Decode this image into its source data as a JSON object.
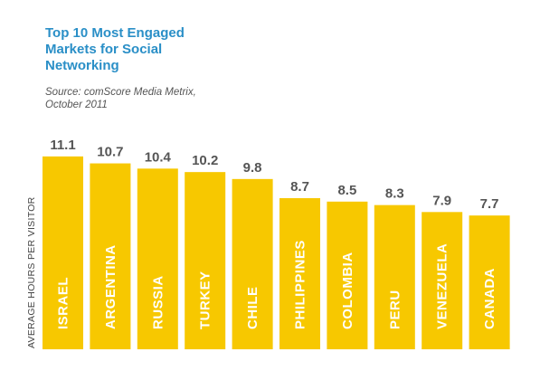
{
  "chart_data": {
    "type": "bar",
    "title": "Top 10 Most Engaged\nMarkets for Social\nNetworking",
    "subtitle": "Source: comScore Media Metrix,\nOctober 2011",
    "ylabel": "AVERAGE HOURS PER VISITOR",
    "xlabel": "",
    "categories": [
      "ISRAEL",
      "ARGENTINA",
      "RUSSIA",
      "TURKEY",
      "CHILE",
      "PHILIPPINES",
      "COLOMBIA",
      "PERU",
      "VENEZUELA",
      "CANADA"
    ],
    "values": [
      11.1,
      10.7,
      10.4,
      10.2,
      9.8,
      8.7,
      8.5,
      8.3,
      7.9,
      7.7
    ],
    "value_labels": [
      "11.1",
      "10.7",
      "10.4",
      "10.2",
      "9.8",
      "8.7",
      "8.5",
      "8.3",
      "7.9",
      "7.7"
    ],
    "bar_color": "#f7c800",
    "title_color": "#2a8fc7",
    "grid": false,
    "legend": "none"
  }
}
